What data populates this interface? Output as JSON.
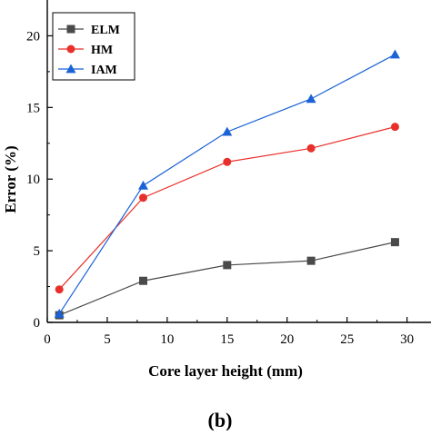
{
  "chart_data": {
    "type": "line",
    "xlabel": "Core layer height (mm)",
    "ylabel": "Error (%)",
    "xlim": [
      0,
      32
    ],
    "ylim": [
      0,
      22.5
    ],
    "xticks": [
      0,
      5,
      10,
      15,
      20,
      25,
      30
    ],
    "yticks": [
      0,
      5,
      10,
      15,
      20
    ],
    "x": [
      1,
      8,
      15,
      22,
      29
    ],
    "grid": false,
    "legend_position": "top-left",
    "caption": "(b)",
    "series": [
      {
        "name": "ELM",
        "marker": "square",
        "color": "#4a4a4a",
        "values": [
          0.5,
          2.9,
          4.0,
          4.3,
          5.6
        ]
      },
      {
        "name": "HM",
        "marker": "circle",
        "color": "#e8302a",
        "values": [
          2.3,
          8.7,
          11.2,
          12.15,
          13.65
        ]
      },
      {
        "name": "IAM",
        "marker": "triangle",
        "color": "#1a62d6",
        "values": [
          0.6,
          9.55,
          13.3,
          15.6,
          18.7
        ]
      }
    ]
  }
}
